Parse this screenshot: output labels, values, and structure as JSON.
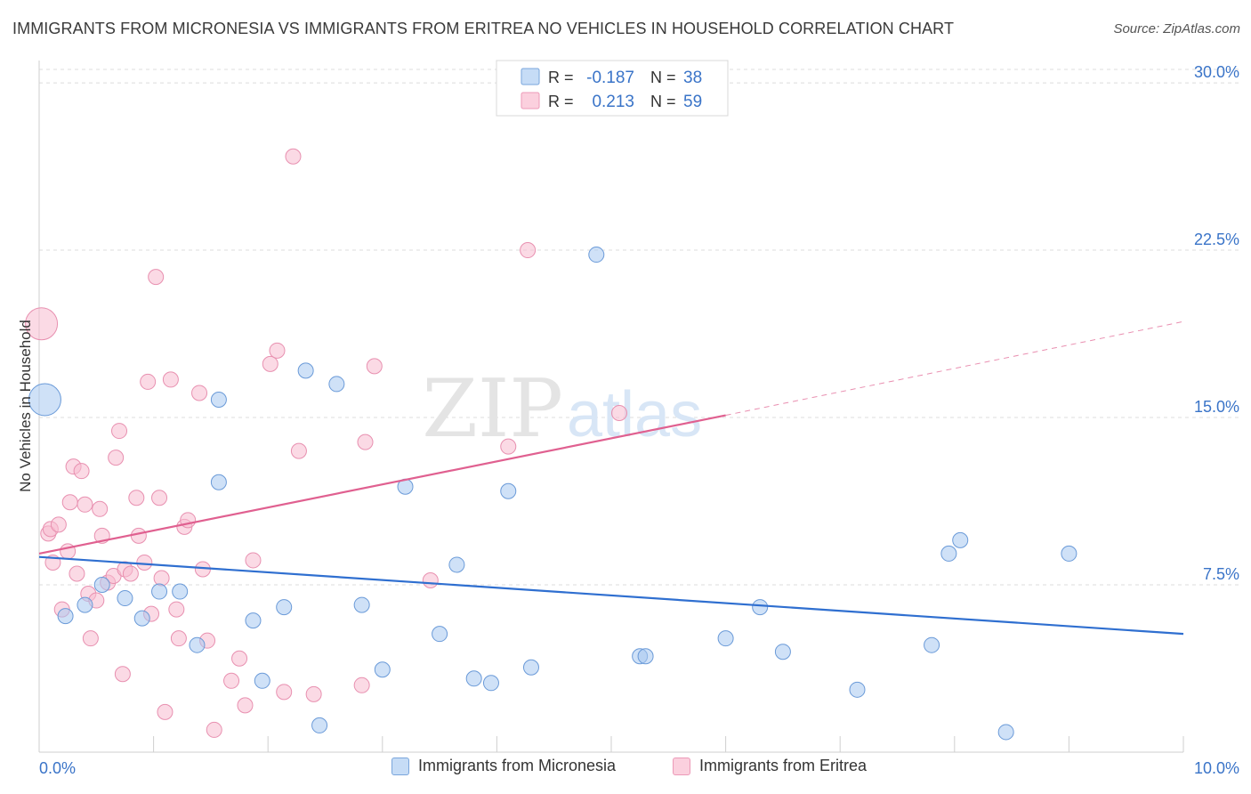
{
  "title": "IMMIGRANTS FROM MICRONESIA VS IMMIGRANTS FROM ERITREA NO VEHICLES IN HOUSEHOLD CORRELATION CHART",
  "source": "Source: ZipAtlas.com",
  "watermark": {
    "zip": "ZIP",
    "atlas": "atlas"
  },
  "legend_top": [
    {
      "r_label": "R =",
      "r_value": "-0.187",
      "n_label": "N =",
      "n_value": "38"
    },
    {
      "r_label": "R =",
      "r_value": "0.213",
      "n_label": "N =",
      "n_value": "59"
    }
  ],
  "colors": {
    "micronesia_fill": "#a8c8f0",
    "micronesia_stroke": "#6a9ad8",
    "micronesia_line": "#2f6fd0",
    "eritrea_fill": "#f8bcd0",
    "eritrea_stroke": "#e890b0",
    "eritrea_line": "#e06090",
    "value_text": "#3a74c8"
  },
  "chart_data": {
    "type": "scatter",
    "title": "IMMIGRANTS FROM MICRONESIA VS IMMIGRANTS FROM ERITREA NO VEHICLES IN HOUSEHOLD CORRELATION CHART",
    "xlabel": "",
    "ylabel": "No Vehicles in Household",
    "xlim": [
      0,
      10
    ],
    "ylim": [
      0,
      31
    ],
    "x_tick_labels": [
      "0.0%",
      "10.0%"
    ],
    "y_ticks": [
      7.5,
      15.0,
      22.5,
      30.0
    ],
    "y_tick_labels": [
      "7.5%",
      "15.0%",
      "22.5%",
      "30.0%"
    ],
    "grid": true,
    "series": [
      {
        "name": "Immigrants from Micronesia",
        "r": -0.187,
        "n": 38,
        "trend": {
          "x0": 0,
          "y0": 8.75,
          "x1": 10,
          "y1": 5.3
        },
        "points": [
          {
            "x": 0.05,
            "y": 15.8,
            "big": true
          },
          {
            "x": 0.23,
            "y": 6.1
          },
          {
            "x": 0.4,
            "y": 6.6
          },
          {
            "x": 0.55,
            "y": 7.5
          },
          {
            "x": 0.75,
            "y": 6.9
          },
          {
            "x": 0.9,
            "y": 6.0
          },
          {
            "x": 1.05,
            "y": 7.2
          },
          {
            "x": 1.23,
            "y": 7.2
          },
          {
            "x": 1.38,
            "y": 4.8
          },
          {
            "x": 1.57,
            "y": 15.8
          },
          {
            "x": 1.57,
            "y": 12.1
          },
          {
            "x": 1.87,
            "y": 5.9
          },
          {
            "x": 1.95,
            "y": 3.2
          },
          {
            "x": 2.14,
            "y": 6.5
          },
          {
            "x": 2.33,
            "y": 17.1
          },
          {
            "x": 2.45,
            "y": 1.2
          },
          {
            "x": 2.6,
            "y": 16.5
          },
          {
            "x": 2.82,
            "y": 6.6
          },
          {
            "x": 3.0,
            "y": 3.7
          },
          {
            "x": 3.2,
            "y": 11.9
          },
          {
            "x": 3.5,
            "y": 5.3
          },
          {
            "x": 3.65,
            "y": 8.4
          },
          {
            "x": 3.8,
            "y": 3.3
          },
          {
            "x": 3.95,
            "y": 3.1
          },
          {
            "x": 4.1,
            "y": 11.7
          },
          {
            "x": 4.3,
            "y": 3.8
          },
          {
            "x": 4.87,
            "y": 22.3
          },
          {
            "x": 5.25,
            "y": 4.3
          },
          {
            "x": 5.3,
            "y": 4.3
          },
          {
            "x": 6.0,
            "y": 5.1
          },
          {
            "x": 6.3,
            "y": 6.5
          },
          {
            "x": 6.5,
            "y": 4.5
          },
          {
            "x": 7.15,
            "y": 2.8
          },
          {
            "x": 7.8,
            "y": 4.8
          },
          {
            "x": 7.95,
            "y": 8.9
          },
          {
            "x": 8.05,
            "y": 9.5
          },
          {
            "x": 8.45,
            "y": 0.9
          },
          {
            "x": 9.0,
            "y": 8.9
          }
        ]
      },
      {
        "name": "Immigrants from Eritrea",
        "r": 0.213,
        "n": 59,
        "trend": {
          "x0": 0,
          "y0": 8.9,
          "x1": 6.0,
          "y1": 15.1
        },
        "trend_dashed": {
          "x0": 6.0,
          "y0": 15.1,
          "x1": 10,
          "y1": 19.3
        },
        "points": [
          {
            "x": 0.02,
            "y": 19.2,
            "big": true
          },
          {
            "x": 0.08,
            "y": 9.8
          },
          {
            "x": 0.1,
            "y": 10.0
          },
          {
            "x": 0.12,
            "y": 8.5
          },
          {
            "x": 0.17,
            "y": 10.2
          },
          {
            "x": 0.2,
            "y": 6.4
          },
          {
            "x": 0.25,
            "y": 9.0
          },
          {
            "x": 0.27,
            "y": 11.2
          },
          {
            "x": 0.3,
            "y": 12.8
          },
          {
            "x": 0.33,
            "y": 8.0
          },
          {
            "x": 0.37,
            "y": 12.6
          },
          {
            "x": 0.4,
            "y": 11.1
          },
          {
            "x": 0.43,
            "y": 7.1
          },
          {
            "x": 0.45,
            "y": 5.1
          },
          {
            "x": 0.5,
            "y": 6.8
          },
          {
            "x": 0.53,
            "y": 10.9
          },
          {
            "x": 0.55,
            "y": 9.7
          },
          {
            "x": 0.6,
            "y": 7.6
          },
          {
            "x": 0.65,
            "y": 7.9
          },
          {
            "x": 0.67,
            "y": 13.2
          },
          {
            "x": 0.7,
            "y": 14.4
          },
          {
            "x": 0.73,
            "y": 3.5
          },
          {
            "x": 0.75,
            "y": 8.2
          },
          {
            "x": 0.8,
            "y": 8.0
          },
          {
            "x": 0.85,
            "y": 11.4
          },
          {
            "x": 0.87,
            "y": 9.7
          },
          {
            "x": 0.92,
            "y": 8.5
          },
          {
            "x": 0.95,
            "y": 16.6
          },
          {
            "x": 0.98,
            "y": 6.2
          },
          {
            "x": 1.02,
            "y": 21.3
          },
          {
            "x": 1.05,
            "y": 11.4
          },
          {
            "x": 1.07,
            "y": 7.8
          },
          {
            "x": 1.1,
            "y": 1.8
          },
          {
            "x": 1.15,
            "y": 16.7
          },
          {
            "x": 1.2,
            "y": 6.4
          },
          {
            "x": 1.22,
            "y": 5.1
          },
          {
            "x": 1.27,
            "y": 10.1
          },
          {
            "x": 1.3,
            "y": 10.4
          },
          {
            "x": 1.4,
            "y": 16.1
          },
          {
            "x": 1.43,
            "y": 8.2
          },
          {
            "x": 1.47,
            "y": 5.0
          },
          {
            "x": 1.53,
            "y": 1.0
          },
          {
            "x": 1.68,
            "y": 3.2
          },
          {
            "x": 1.75,
            "y": 4.2
          },
          {
            "x": 1.8,
            "y": 2.1
          },
          {
            "x": 1.87,
            "y": 8.6
          },
          {
            "x": 2.02,
            "y": 17.4
          },
          {
            "x": 2.08,
            "y": 18.0
          },
          {
            "x": 2.14,
            "y": 2.7
          },
          {
            "x": 2.22,
            "y": 26.7
          },
          {
            "x": 2.27,
            "y": 13.5
          },
          {
            "x": 2.4,
            "y": 2.6
          },
          {
            "x": 2.82,
            "y": 3.0
          },
          {
            "x": 2.85,
            "y": 13.9
          },
          {
            "x": 2.93,
            "y": 17.3
          },
          {
            "x": 3.42,
            "y": 7.7
          },
          {
            "x": 4.1,
            "y": 13.7
          },
          {
            "x": 4.27,
            "y": 22.5
          },
          {
            "x": 5.07,
            "y": 15.2
          }
        ]
      }
    ]
  }
}
